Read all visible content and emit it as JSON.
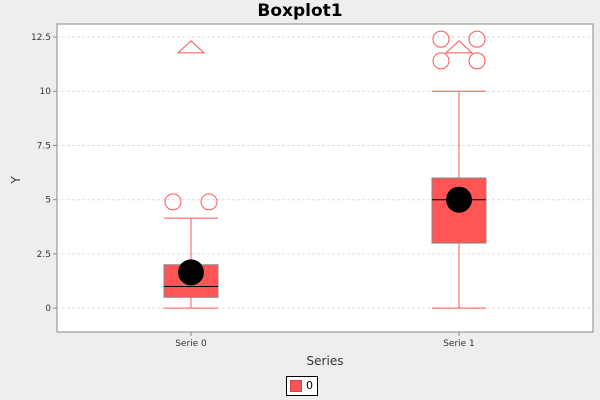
{
  "chart_data": {
    "type": "boxplot",
    "title": "Boxplot1",
    "xlabel": "Series",
    "ylabel": "Y",
    "ylim": [
      -1.1,
      13.1
    ],
    "yticks": [
      "0",
      "2.5",
      "5",
      "7.5",
      "10",
      "12.5"
    ],
    "ytick_values": [
      0,
      2.5,
      5,
      7.5,
      10,
      12.5
    ],
    "grid": true,
    "categories": [
      "Serie 0",
      "Serie 1"
    ],
    "series": [
      {
        "name": "0",
        "color": "#ff5555",
        "boxes": [
          {
            "category": "Serie 0",
            "whisker_low": 0,
            "q1": 0.5,
            "median": 1.0,
            "q3": 2.0,
            "whisker_high": 4.15,
            "mean": 1.65,
            "outliers": [
              4.9,
              4.9
            ],
            "far_outliers": [
              12.0
            ]
          },
          {
            "category": "Serie 1",
            "whisker_low": 0,
            "q1": 3.0,
            "median": 5.0,
            "q3": 6.0,
            "whisker_high": 10.0,
            "mean": 5.0,
            "outliers": [
              11.4,
              11.4,
              12.4,
              12.4
            ],
            "far_outliers": [
              12.0
            ]
          }
        ]
      }
    ],
    "legend": {
      "position": "bottom-center",
      "entries": [
        "0"
      ]
    }
  }
}
